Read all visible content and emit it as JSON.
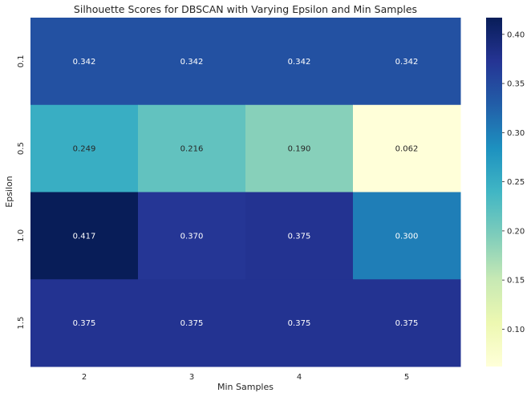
{
  "chart_data": {
    "type": "heatmap",
    "title": "Silhouette Scores for DBSCAN with Varying Epsilon and Min Samples",
    "xlabel": "Min Samples",
    "ylabel": "Epsilon",
    "x_categories": [
      "2",
      "3",
      "4",
      "5"
    ],
    "y_categories": [
      "0.1",
      "0.5",
      "1.0",
      "1.5"
    ],
    "values": [
      [
        0.342,
        0.342,
        0.342,
        0.342
      ],
      [
        0.249,
        0.216,
        0.19,
        0.062
      ],
      [
        0.417,
        0.37,
        0.375,
        0.3
      ],
      [
        0.375,
        0.375,
        0.375,
        0.375
      ]
    ],
    "value_labels": [
      [
        "0.342",
        "0.342",
        "0.342",
        "0.342"
      ],
      [
        "0.249",
        "0.216",
        "0.190",
        "0.062"
      ],
      [
        "0.417",
        "0.370",
        "0.375",
        "0.300"
      ],
      [
        "0.375",
        "0.375",
        "0.375",
        "0.375"
      ]
    ],
    "colormap": "YlGnBu",
    "vmin": 0.062,
    "vmax": 0.417,
    "colorbar_ticks": [
      "0.10",
      "0.15",
      "0.20",
      "0.25",
      "0.30",
      "0.35",
      "0.40"
    ],
    "colorbar_tick_values": [
      0.1,
      0.15,
      0.2,
      0.25,
      0.3,
      0.35,
      0.4
    ]
  }
}
